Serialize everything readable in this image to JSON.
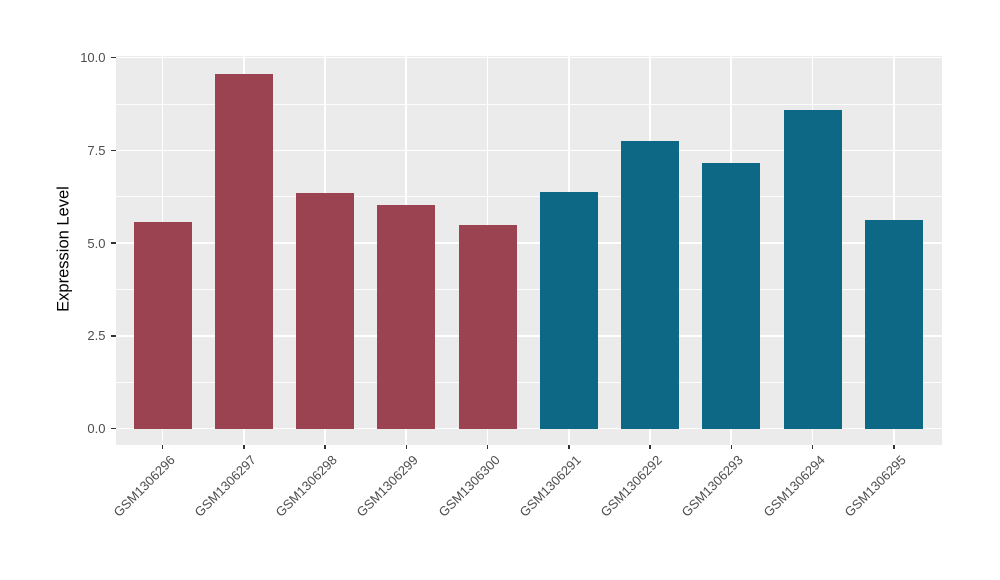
{
  "chart_data": {
    "type": "bar",
    "title": "",
    "xlabel": "",
    "ylabel": "Expression Level",
    "categories": [
      "GSM1306296",
      "GSM1306297",
      "GSM1306298",
      "GSM1306299",
      "GSM1306300",
      "GSM1306291",
      "GSM1306292",
      "GSM1306293",
      "GSM1306294",
      "GSM1306295"
    ],
    "values": [
      5.57,
      9.56,
      6.34,
      6.04,
      5.5,
      6.39,
      7.75,
      7.15,
      8.59,
      5.63
    ],
    "bar_colors": [
      "#9C4351",
      "#9C4351",
      "#9C4351",
      "#9C4351",
      "#9C4351",
      "#0C6885",
      "#0C6885",
      "#0C6885",
      "#0C6885",
      "#0C6885"
    ],
    "group_colors": {
      "maroon_group": "#9C4351",
      "teal_group": "#0C6885"
    },
    "ylim": [
      0,
      10
    ],
    "y_major_ticks": [
      0.0,
      2.5,
      5.0,
      7.5,
      10.0
    ],
    "y_tick_labels": [
      "0.0",
      "2.5",
      "5.0",
      "7.5",
      "10.0"
    ],
    "y_minor_ticks": [
      1.25,
      3.75,
      6.25,
      8.75
    ],
    "grid": "on",
    "legend_position": "none",
    "panel_background": "#EBEBEB",
    "grid_color": "#FFFFFF",
    "axis_text_color": "#4D4D4D",
    "tick_mark_color": "#333333"
  }
}
